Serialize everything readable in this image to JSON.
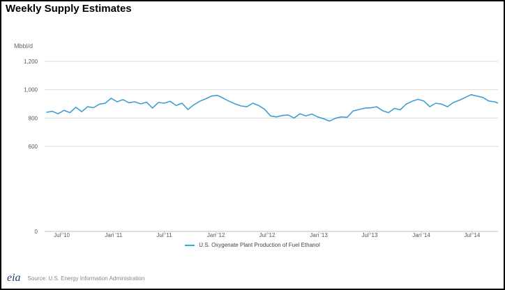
{
  "header": {
    "title": "Weekly Supply Estimates"
  },
  "chart_data": {
    "type": "line",
    "title": "",
    "ylabel": "Mbbl/d",
    "ylim": [
      0,
      1200
    ],
    "yticks": [
      0,
      600,
      800,
      1000,
      1200
    ],
    "ytick_labels": [
      "0",
      "600",
      "800",
      "1,000",
      "1,200"
    ],
    "x_range": [
      "2010-05-01",
      "2014-10-01"
    ],
    "xticks": [
      {
        "date": "2010-07-01",
        "label": "Jul '10"
      },
      {
        "date": "2011-01-01",
        "label": "Jan '11"
      },
      {
        "date": "2011-07-01",
        "label": "Jul '11"
      },
      {
        "date": "2012-01-01",
        "label": "Jan '12"
      },
      {
        "date": "2012-07-01",
        "label": "Jul '12"
      },
      {
        "date": "2013-01-01",
        "label": "Jan '13"
      },
      {
        "date": "2013-07-01",
        "label": "Jul '13"
      },
      {
        "date": "2014-01-01",
        "label": "Jan '14"
      },
      {
        "date": "2014-07-01",
        "label": "Jul '14"
      }
    ],
    "grid": true,
    "legend_position": "bottom",
    "series": [
      {
        "name": "U.S. Oxygenate Plant Production of Fuel Ethanol",
        "color": "#3f9fd3",
        "points": [
          [
            "2010-05-07",
            840
          ],
          [
            "2010-05-28",
            848
          ],
          [
            "2010-06-18",
            830
          ],
          [
            "2010-07-09",
            855
          ],
          [
            "2010-07-30",
            838
          ],
          [
            "2010-08-20",
            876
          ],
          [
            "2010-09-10",
            845
          ],
          [
            "2010-10-01",
            880
          ],
          [
            "2010-10-22",
            873
          ],
          [
            "2010-11-12",
            898
          ],
          [
            "2010-12-03",
            905
          ],
          [
            "2010-12-24",
            940
          ],
          [
            "2011-01-14",
            915
          ],
          [
            "2011-02-04",
            930
          ],
          [
            "2011-02-25",
            908
          ],
          [
            "2011-03-18",
            915
          ],
          [
            "2011-04-08",
            900
          ],
          [
            "2011-04-29",
            912
          ],
          [
            "2011-05-20",
            870
          ],
          [
            "2011-06-10",
            910
          ],
          [
            "2011-07-01",
            905
          ],
          [
            "2011-07-22",
            918
          ],
          [
            "2011-08-12",
            888
          ],
          [
            "2011-09-02",
            905
          ],
          [
            "2011-09-23",
            860
          ],
          [
            "2011-10-14",
            893
          ],
          [
            "2011-11-04",
            918
          ],
          [
            "2011-11-25",
            935
          ],
          [
            "2011-12-16",
            955
          ],
          [
            "2012-01-06",
            960
          ],
          [
            "2012-01-27",
            940
          ],
          [
            "2012-02-17",
            918
          ],
          [
            "2012-03-09",
            900
          ],
          [
            "2012-03-30",
            885
          ],
          [
            "2012-04-20",
            880
          ],
          [
            "2012-05-11",
            905
          ],
          [
            "2012-06-01",
            888
          ],
          [
            "2012-06-22",
            862
          ],
          [
            "2012-07-13",
            815
          ],
          [
            "2012-08-03",
            808
          ],
          [
            "2012-08-24",
            818
          ],
          [
            "2012-09-14",
            822
          ],
          [
            "2012-10-05",
            800
          ],
          [
            "2012-10-26",
            830
          ],
          [
            "2012-11-16",
            815
          ],
          [
            "2012-12-07",
            828
          ],
          [
            "2012-12-28",
            808
          ],
          [
            "2013-01-18",
            795
          ],
          [
            "2013-02-08",
            778
          ],
          [
            "2013-03-01",
            798
          ],
          [
            "2013-03-22",
            808
          ],
          [
            "2013-04-12",
            805
          ],
          [
            "2013-05-03",
            850
          ],
          [
            "2013-05-24",
            860
          ],
          [
            "2013-06-14",
            870
          ],
          [
            "2013-07-05",
            872
          ],
          [
            "2013-07-26",
            880
          ],
          [
            "2013-08-16",
            852
          ],
          [
            "2013-09-06",
            838
          ],
          [
            "2013-09-27",
            868
          ],
          [
            "2013-10-18",
            858
          ],
          [
            "2013-11-08",
            898
          ],
          [
            "2013-11-29",
            918
          ],
          [
            "2013-12-20",
            932
          ],
          [
            "2014-01-10",
            920
          ],
          [
            "2014-01-31",
            880
          ],
          [
            "2014-02-21",
            905
          ],
          [
            "2014-03-14",
            898
          ],
          [
            "2014-04-04",
            880
          ],
          [
            "2014-04-25",
            910
          ],
          [
            "2014-05-16",
            925
          ],
          [
            "2014-06-06",
            945
          ],
          [
            "2014-06-27",
            965
          ],
          [
            "2014-07-18",
            955
          ],
          [
            "2014-08-08",
            945
          ],
          [
            "2014-08-29",
            920
          ],
          [
            "2014-09-19",
            915
          ],
          [
            "2014-10-01",
            905
          ]
        ]
      }
    ]
  },
  "footer": {
    "logo_text": "eia",
    "source": "Source: U.S. Energy Information Administration"
  }
}
